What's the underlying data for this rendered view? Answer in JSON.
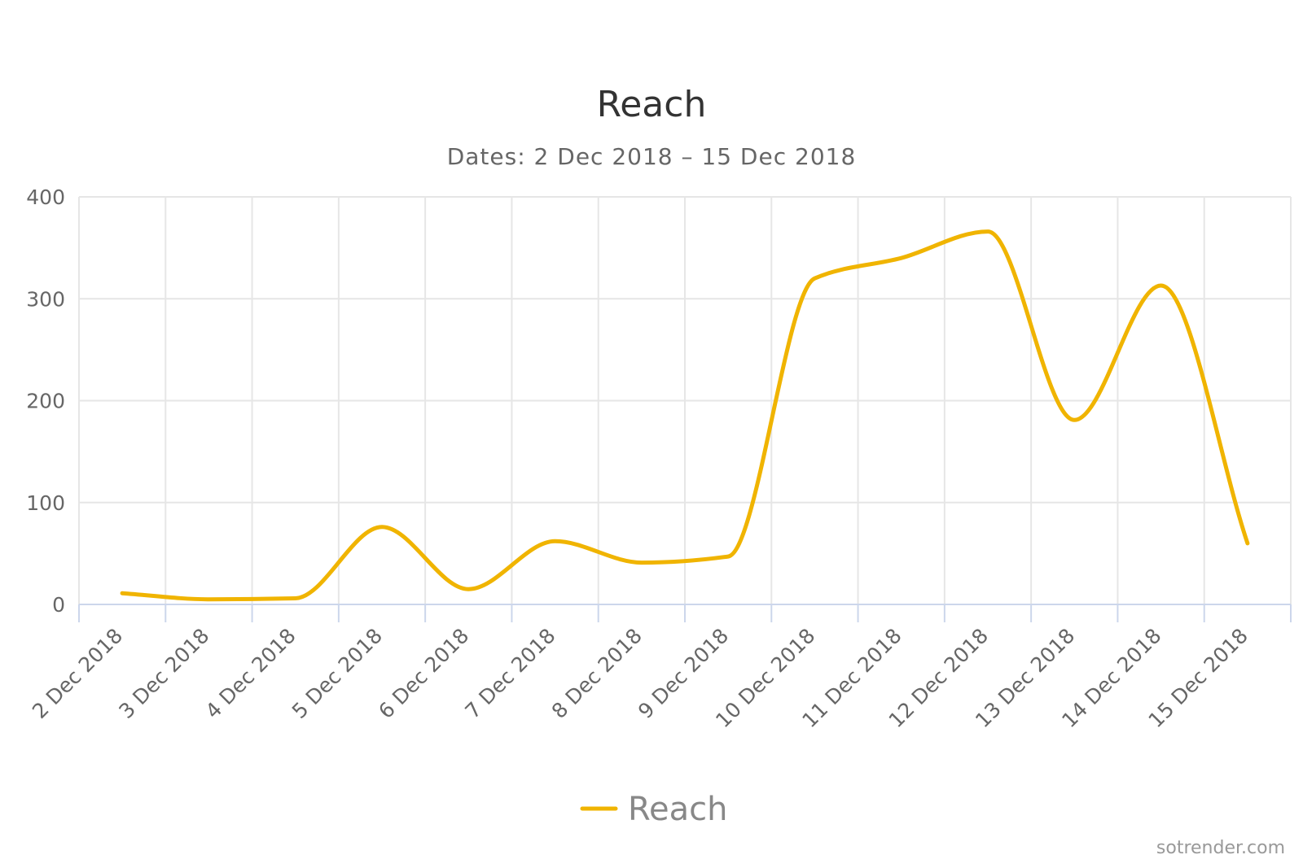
{
  "chart_data": {
    "type": "line",
    "title": "Reach",
    "subtitle": "Dates: 2 Dec 2018 – 15 Dec 2018",
    "categories": [
      "2 Dec 2018",
      "3 Dec 2018",
      "4 Dec 2018",
      "5 Dec 2018",
      "6 Dec 2018",
      "7 Dec 2018",
      "8 Dec 2018",
      "9 Dec 2018",
      "10 Dec 2018",
      "11 Dec 2018",
      "12 Dec 2018",
      "13 Dec 2018",
      "14 Dec 2018",
      "15 Dec 2018"
    ],
    "series": [
      {
        "name": "Reach",
        "color": "#f0b400",
        "values": [
          11,
          5,
          6,
          76,
          15,
          62,
          41,
          47,
          320,
          340,
          366,
          181,
          313,
          60
        ]
      }
    ],
    "ylim": [
      0,
      400
    ],
    "yticks": [
      0,
      100,
      200,
      300,
      400
    ],
    "grid": true,
    "legend_position": "bottom",
    "xlabel": "",
    "ylabel": "",
    "credit": "sotrender.com"
  }
}
